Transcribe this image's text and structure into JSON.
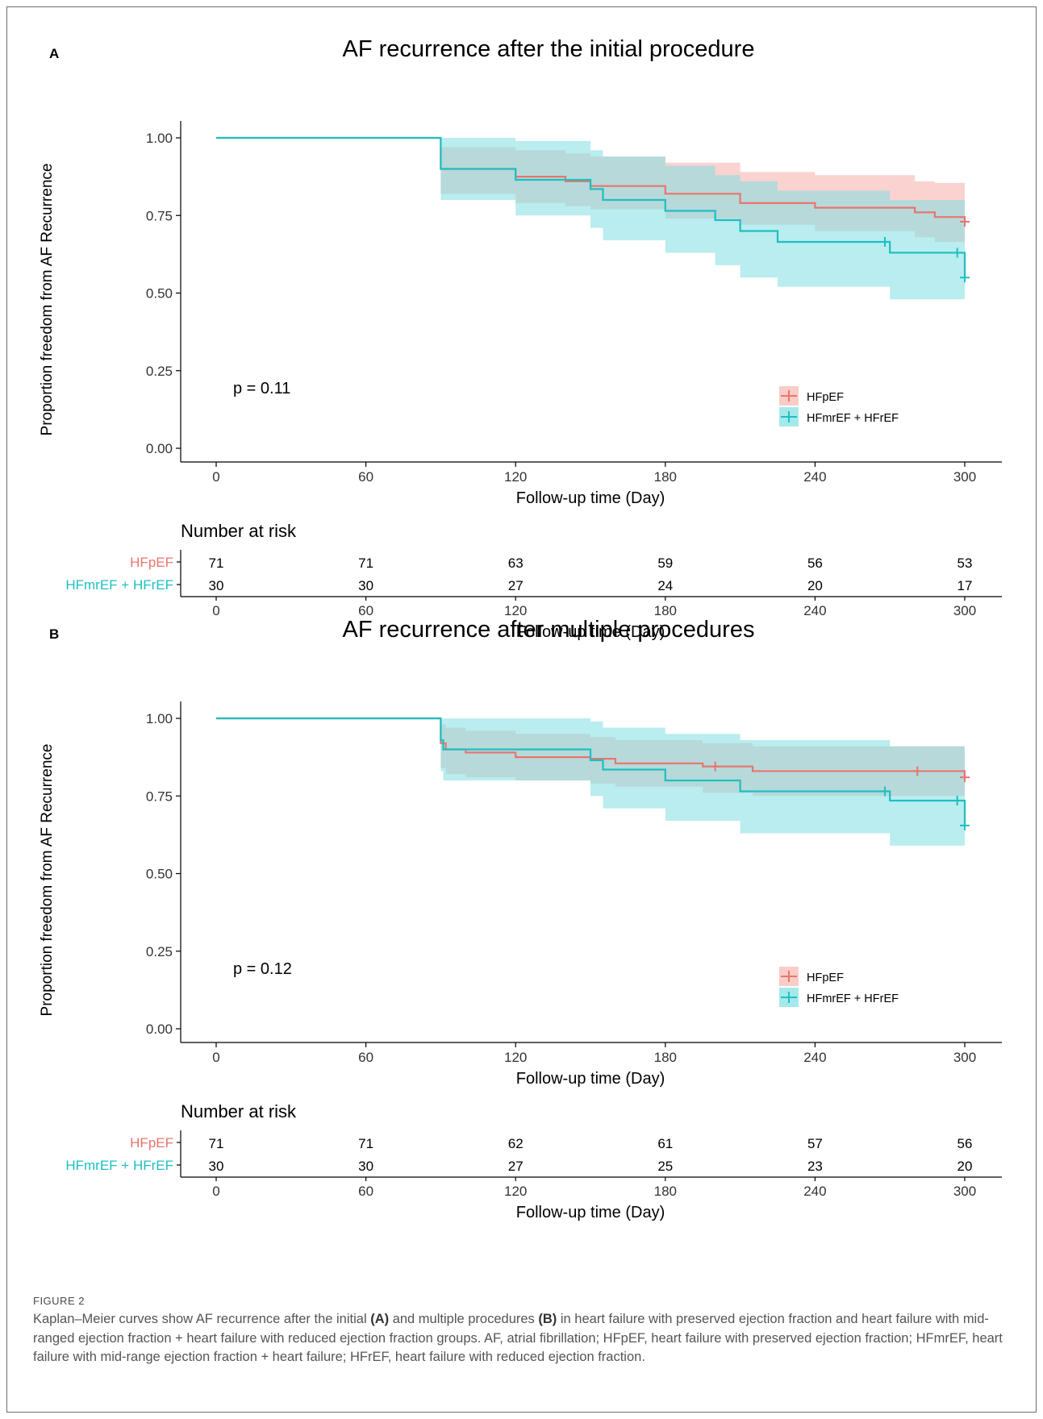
{
  "colors": {
    "hfpef": "#e8756d",
    "hfmref": "#1ebfc2",
    "hfpef_band": "#f6b6b1",
    "hfmref_band": "#7fdfe2",
    "axis": "#000000"
  },
  "chart_data": [
    {
      "type": "line",
      "panel_label": "A",
      "title": "AF recurrence after the initial procedure",
      "xlabel": "Follow-up time (Day)",
      "ylabel": "Proportion freedom from AF Recurrence",
      "xlim": [
        0,
        300
      ],
      "ylim": [
        0,
        1
      ],
      "x_ticks": [
        "0",
        "60",
        "120",
        "180",
        "240",
        "300"
      ],
      "y_ticks": [
        "0.00",
        "0.25",
        "0.50",
        "0.75",
        "1.00"
      ],
      "p_value": "p = 0.11",
      "legend_position": "bottom-right",
      "series": [
        {
          "name": "HFpEF",
          "color": "#e8756d",
          "x": [
            0,
            90,
            120,
            140,
            150,
            180,
            210,
            240,
            280,
            288,
            300
          ],
          "y": [
            1.0,
            0.9,
            0.875,
            0.86,
            0.845,
            0.82,
            0.79,
            0.775,
            0.76,
            0.745,
            0.73
          ],
          "lower": [
            1.0,
            0.82,
            0.79,
            0.78,
            0.77,
            0.74,
            0.72,
            0.7,
            0.68,
            0.665,
            0.65
          ],
          "upper": [
            1.0,
            0.97,
            0.96,
            0.95,
            0.94,
            0.92,
            0.89,
            0.88,
            0.86,
            0.855,
            0.855
          ],
          "censor_x": [
            300
          ],
          "censor_y": [
            0.73
          ]
        },
        {
          "name": "HFmrEF + HFrEF",
          "color": "#1ebfc2",
          "x": [
            0,
            90,
            120,
            150,
            155,
            180,
            200,
            210,
            225,
            270,
            300
          ],
          "y": [
            1.0,
            0.9,
            0.865,
            0.835,
            0.8,
            0.765,
            0.735,
            0.7,
            0.665,
            0.63,
            0.55
          ],
          "lower": [
            1.0,
            0.8,
            0.75,
            0.71,
            0.67,
            0.63,
            0.59,
            0.55,
            0.52,
            0.48,
            0.48
          ],
          "upper": [
            1.0,
            1.0,
            0.99,
            0.96,
            0.94,
            0.91,
            0.88,
            0.86,
            0.83,
            0.8,
            0.8
          ],
          "censor_x": [
            268,
            297,
            300
          ],
          "censor_y": [
            0.665,
            0.63,
            0.55
          ]
        }
      ],
      "risk_table": {
        "title": "Number at risk",
        "rows": [
          {
            "label": "HFpEF",
            "values": [
              "71",
              "71",
              "63",
              "59",
              "56",
              "53"
            ]
          },
          {
            "label": "HFmrEF + HFrEF",
            "values": [
              "30",
              "30",
              "27",
              "24",
              "20",
              "17"
            ]
          }
        ],
        "xlabel": "Follow-up time (Day)"
      }
    },
    {
      "type": "line",
      "panel_label": "B",
      "title": "AF recurrence after multiple procedures",
      "xlabel": "Follow-up time (Day)",
      "ylabel": "Proportion freedom from AF Recurrence",
      "xlim": [
        0,
        300
      ],
      "ylim": [
        0,
        1
      ],
      "x_ticks": [
        "0",
        "60",
        "120",
        "180",
        "240",
        "300"
      ],
      "y_ticks": [
        "0.00",
        "0.25",
        "0.50",
        "0.75",
        "1.00"
      ],
      "p_value": "p = 0.12",
      "legend_position": "bottom-right",
      "series": [
        {
          "name": "HFpEF",
          "color": "#e8756d",
          "x": [
            0,
            90,
            92,
            100,
            120,
            150,
            160,
            195,
            215,
            300
          ],
          "y": [
            1.0,
            0.92,
            0.9,
            0.89,
            0.875,
            0.87,
            0.855,
            0.845,
            0.83,
            0.81
          ],
          "lower": [
            1.0,
            0.84,
            0.82,
            0.81,
            0.8,
            0.79,
            0.78,
            0.76,
            0.75,
            0.74
          ],
          "upper": [
            1.0,
            0.98,
            0.97,
            0.96,
            0.95,
            0.94,
            0.93,
            0.92,
            0.91,
            0.92
          ],
          "censor_x": [
            200,
            281,
            300
          ],
          "censor_y": [
            0.845,
            0.83,
            0.81
          ]
        },
        {
          "name": "HFmrEF + HFrEF",
          "color": "#1ebfc2",
          "x": [
            0,
            90,
            91,
            150,
            155,
            180,
            210,
            270,
            300
          ],
          "y": [
            1.0,
            0.93,
            0.9,
            0.865,
            0.835,
            0.8,
            0.765,
            0.735,
            0.655
          ],
          "lower": [
            1.0,
            0.83,
            0.8,
            0.75,
            0.71,
            0.67,
            0.63,
            0.59,
            0.59
          ],
          "upper": [
            1.0,
            1.0,
            1.0,
            0.99,
            0.97,
            0.95,
            0.93,
            0.91,
            0.91
          ],
          "censor_x": [
            268,
            297,
            300
          ],
          "censor_y": [
            0.765,
            0.735,
            0.655
          ]
        }
      ],
      "risk_table": {
        "title": "Number at risk",
        "rows": [
          {
            "label": "HFpEF",
            "values": [
              "71",
              "71",
              "62",
              "61",
              "57",
              "56"
            ]
          },
          {
            "label": "HFmrEF + HFrEF",
            "values": [
              "30",
              "30",
              "27",
              "25",
              "23",
              "20"
            ]
          }
        ],
        "xlabel": "Follow-up time (Day)"
      }
    }
  ],
  "caption": {
    "label": "FIGURE 2",
    "text_1": "Kaplan–Meier curves show AF recurrence after the initial ",
    "ref_a": "(A)",
    "text_2": " and multiple procedures ",
    "ref_b": "(B)",
    "text_3": " in heart failure with preserved ejection fraction and heart failure with mid-ranged ejection fraction + heart failure with reduced ejection fraction groups. AF, atrial fibrillation; HFpEF, heart failure with preserved ejection fraction; HFmrEF, heart failure with mid-range ejection fraction + heart failure; HFrEF, heart failure with reduced ejection fraction."
  }
}
